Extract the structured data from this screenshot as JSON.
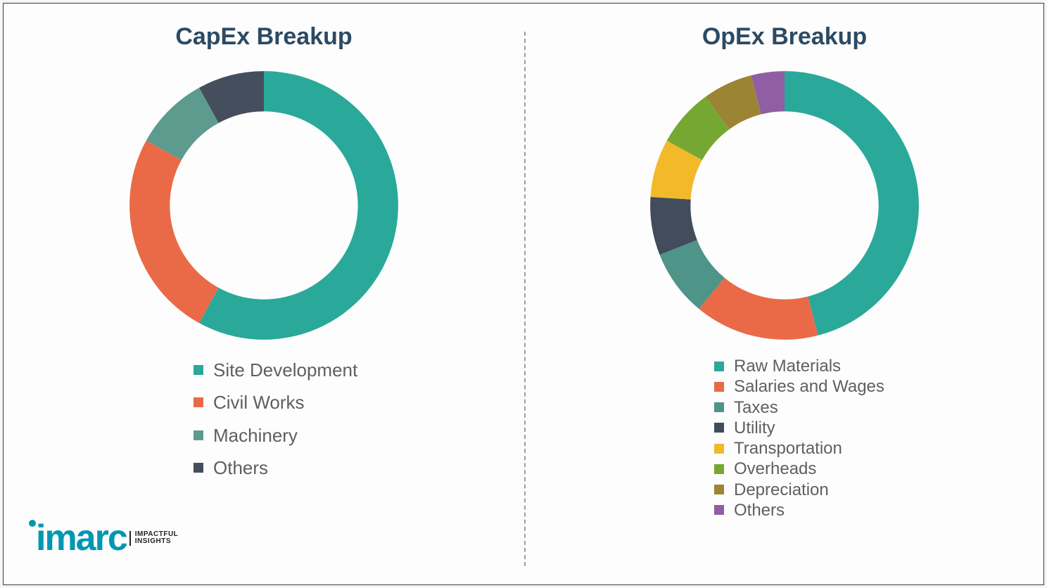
{
  "background_color": "#fdfdfd",
  "frame_border_color": "#3a3a3a",
  "divider_color": "#9aa0a6",
  "title_color": "#2c4a63",
  "title_fontsize": 34,
  "legend_text_color": "#5f5f5f",
  "capex": {
    "title": "CapEx Breakup",
    "type": "donut",
    "inner_radius_pct": 70,
    "outer_radius_pct": 100,
    "start_angle_deg": 0,
    "direction": "clockwise",
    "slices": [
      {
        "label": "Site Development",
        "value": 58,
        "color": "#2aa99a"
      },
      {
        "label": "Civil Works",
        "value": 25,
        "color": "#ea6a47"
      },
      {
        "label": "Machinery",
        "value": 9,
        "color": "#5d9b8f"
      },
      {
        "label": "Others",
        "value": 8,
        "color": "#444e5c"
      }
    ]
  },
  "opex": {
    "title": "OpEx Breakup",
    "type": "donut",
    "inner_radius_pct": 70,
    "outer_radius_pct": 100,
    "start_angle_deg": 0,
    "direction": "clockwise",
    "slices": [
      {
        "label": "Raw Materials",
        "value": 46,
        "color": "#2aa99a"
      },
      {
        "label": "Salaries and Wages",
        "value": 15,
        "color": "#ea6a47"
      },
      {
        "label": "Taxes",
        "value": 8,
        "color": "#4f9488"
      },
      {
        "label": "Utility",
        "value": 7,
        "color": "#434c5a"
      },
      {
        "label": "Transportation",
        "value": 7,
        "color": "#f2b92b"
      },
      {
        "label": "Overheads",
        "value": 7,
        "color": "#77a733"
      },
      {
        "label": "Depreciation",
        "value": 6,
        "color": "#9b8433"
      },
      {
        "label": "Others",
        "value": 4,
        "color": "#8f5ea3"
      }
    ]
  },
  "logo": {
    "brand": "imarc",
    "brand_color": "#0097b2",
    "tagline_line1": "IMPACTFUL",
    "tagline_line2": "INSIGHTS"
  }
}
